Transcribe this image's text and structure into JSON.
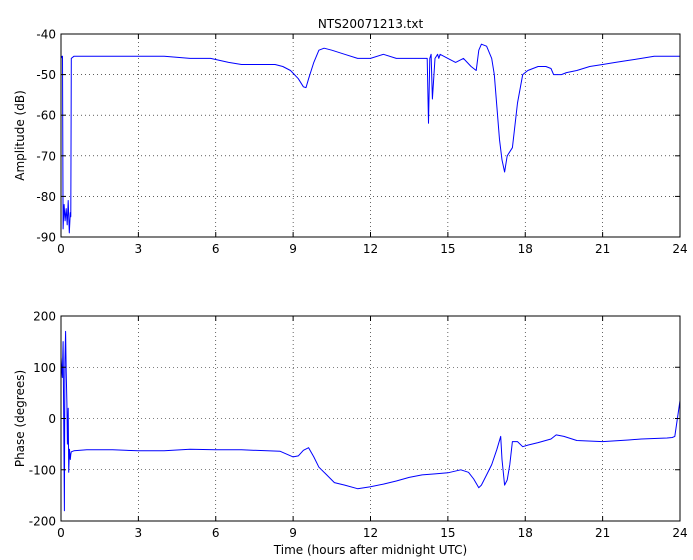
{
  "chart_data": [
    {
      "type": "line",
      "title": "NTS20071213.txt",
      "xlabel": "",
      "ylabel": "Amplitude (dB)",
      "xlim": [
        0,
        24
      ],
      "ylim": [
        -90,
        -40
      ],
      "xticks": [
        0,
        3,
        6,
        9,
        12,
        15,
        18,
        21,
        24
      ],
      "xtick_labels": [
        "0",
        "3",
        "6",
        "9",
        "12",
        "15",
        "18",
        "21",
        "24"
      ],
      "yticks": [
        -90,
        -80,
        -70,
        -60,
        -50,
        -40
      ],
      "ytick_labels": [
        "-90",
        "-80",
        "-70",
        "-60",
        "-50",
        "-40"
      ],
      "grid": true,
      "color": "#0000ff",
      "x": [
        0,
        0.04,
        0.06,
        0.08,
        0.12,
        0.16,
        0.2,
        0.24,
        0.28,
        0.32,
        0.36,
        0.38,
        0.4,
        0.5,
        1,
        2,
        3,
        4,
        5,
        5.8,
        6.5,
        7,
        7.5,
        8,
        8.3,
        8.6,
        8.9,
        9.2,
        9.4,
        9.5,
        9.6,
        9.8,
        10,
        10.2,
        10.5,
        11,
        11.5,
        12,
        12.5,
        13,
        13.5,
        14,
        14.2,
        14.25,
        14.3,
        14.35,
        14.4,
        14.5,
        14.6,
        14.65,
        14.7,
        15,
        15.3,
        15.6,
        15.9,
        16.1,
        16.2,
        16.3,
        16.5,
        16.7,
        16.8,
        16.9,
        17.0,
        17.1,
        17.2,
        17.3,
        17.5,
        17.7,
        17.9,
        18.1,
        18.5,
        18.8,
        19.0,
        19.1,
        19.2,
        19.4,
        19.6,
        20,
        20.5,
        21,
        21.5,
        22,
        22.5,
        23,
        23.5,
        24
      ],
      "values": [
        -46,
        -45.5,
        -45.5,
        -88,
        -82,
        -86,
        -83,
        -87,
        -81,
        -89,
        -84,
        -85,
        -46,
        -45.5,
        -45.5,
        -45.5,
        -45.5,
        -45.5,
        -46,
        -46,
        -47,
        -47.5,
        -47.5,
        -47.5,
        -47.5,
        -48,
        -49,
        -51,
        -53,
        -53.2,
        -51,
        -47,
        -44,
        -43.5,
        -44,
        -45,
        -46,
        -46,
        -45,
        -46,
        -46,
        -46,
        -46,
        -62,
        -46,
        -45,
        -56,
        -46,
        -45,
        -46,
        -45,
        -46,
        -47,
        -46,
        -48,
        -49,
        -44,
        -42.5,
        -43,
        -46,
        -50,
        -58,
        -66,
        -71,
        -74,
        -70,
        -68,
        -57,
        -50,
        -49,
        -48,
        -48,
        -48.5,
        -50,
        -50,
        -50,
        -49.5,
        -49,
        -48,
        -47.5,
        -47,
        -46.5,
        -46,
        -45.5,
        -45.5,
        -45.5
      ]
    },
    {
      "type": "line",
      "title": "",
      "xlabel": "Time (hours after midnight UTC)",
      "ylabel": "Phase (degrees)",
      "xlim": [
        0,
        24
      ],
      "ylim": [
        -200,
        200
      ],
      "xticks": [
        0,
        3,
        6,
        9,
        12,
        15,
        18,
        21,
        24
      ],
      "xtick_labels": [
        "0",
        "3",
        "6",
        "9",
        "12",
        "15",
        "18",
        "21",
        "24"
      ],
      "yticks": [
        -200,
        -100,
        0,
        100,
        200
      ],
      "ytick_labels": [
        "-200",
        "-100",
        "0",
        "100",
        "200"
      ],
      "grid": true,
      "color": "#0000ff",
      "x": [
        0,
        0.05,
        0.08,
        0.1,
        0.13,
        0.15,
        0.18,
        0.2,
        0.23,
        0.25,
        0.28,
        0.3,
        0.33,
        0.36,
        0.38,
        0.4,
        0.5,
        1,
        2,
        3,
        4,
        5,
        6,
        7,
        8,
        8.5,
        9,
        9.2,
        9.4,
        9.6,
        9.8,
        10,
        10.3,
        10.6,
        11,
        11.5,
        12,
        12.5,
        13,
        13.5,
        14,
        14.5,
        15,
        15.5,
        15.8,
        16.0,
        16.2,
        16.3,
        16.5,
        16.7,
        16.9,
        17.05,
        17.1,
        17.2,
        17.3,
        17.4,
        17.5,
        17.7,
        17.9,
        18.1,
        18.5,
        19,
        19.2,
        19.5,
        20,
        21,
        22,
        22.5,
        23,
        23.5,
        23.7,
        23.8,
        23.9,
        24
      ],
      "values": [
        120,
        80,
        150,
        30,
        -180,
        110,
        170,
        90,
        30,
        -50,
        20,
        -105,
        -60,
        -80,
        -70,
        -65,
        -63,
        -61,
        -61,
        -63,
        -63,
        -60,
        -61,
        -61,
        -63,
        -64,
        -75,
        -73,
        -62,
        -57,
        -75,
        -95,
        -110,
        -125,
        -130,
        -137,
        -133,
        -128,
        -122,
        -115,
        -110,
        -108,
        -106,
        -100,
        -105,
        -118,
        -135,
        -130,
        -110,
        -90,
        -60,
        -35,
        -80,
        -130,
        -120,
        -90,
        -45,
        -45,
        -55,
        -52,
        -47,
        -40,
        -32,
        -35,
        -43,
        -45,
        -42,
        -40,
        -39,
        -38,
        -37,
        -35,
        0,
        35
      ]
    }
  ]
}
